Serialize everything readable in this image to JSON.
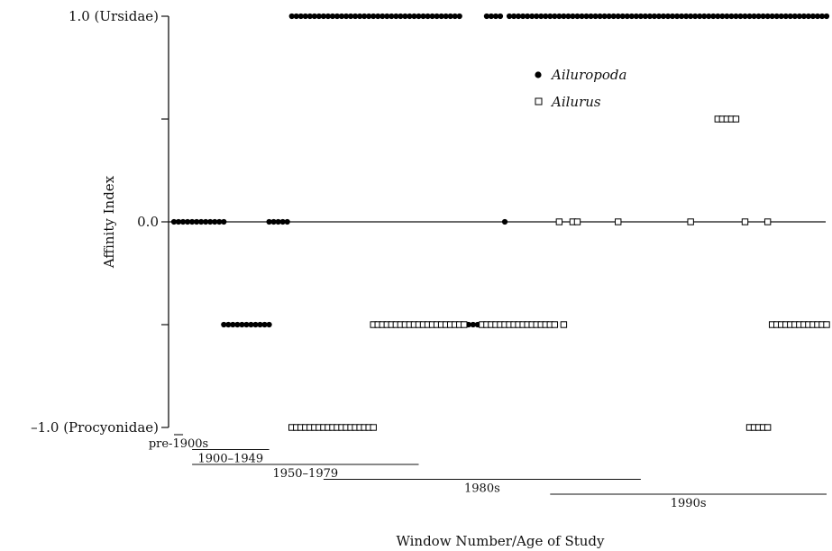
{
  "chart_data": {
    "type": "scatter",
    "title": "",
    "xlabel": "Window Number/Age of Study",
    "ylabel": "Affinity Index",
    "ylim": [
      -1.0,
      1.0
    ],
    "yticks": [
      {
        "value": 1.0,
        "label": "1.0 (Ursidae)"
      },
      {
        "value": 0.5,
        "label": ""
      },
      {
        "value": 0.0,
        "label": "0.0"
      },
      {
        "value": -0.5,
        "label": ""
      },
      {
        "value": -1.0,
        "label": "–1.0 (Procyonidae)"
      }
    ],
    "grid": false,
    "legend_position": "top-right",
    "windows_total": 145,
    "series": [
      {
        "name": "Ailuropoda",
        "marker": "filled-circle",
        "color": "#000000",
        "runs": [
          {
            "y": 0.0,
            "from": 1,
            "to": 12
          },
          {
            "y": -0.5,
            "from": 12,
            "to": 22
          },
          {
            "y": 0.0,
            "from": 22,
            "to": 26
          },
          {
            "y": 1.0,
            "from": 27,
            "to": 64
          },
          {
            "y": -0.5,
            "from": 65,
            "to": 69
          },
          {
            "y": 1.0,
            "from": 70,
            "to": 73
          },
          {
            "y": 0.0,
            "from": 74,
            "to": 74
          },
          {
            "y": 1.0,
            "from": 75,
            "to": 145
          }
        ]
      },
      {
        "name": "Ailurus",
        "marker": "open-square",
        "color": "#000000",
        "runs": [
          {
            "y": -1.0,
            "from": 27,
            "to": 45
          },
          {
            "y": -0.5,
            "from": 45,
            "to": 65
          },
          {
            "y": -0.5,
            "from": 69,
            "to": 85
          },
          {
            "y": -0.5,
            "from": 87,
            "to": 87
          },
          {
            "y": 0.0,
            "from": 86,
            "to": 86
          },
          {
            "y": 0.0,
            "from": 89,
            "to": 90
          },
          {
            "y": 0.0,
            "from": 99,
            "to": 99
          },
          {
            "y": 0.0,
            "from": 115,
            "to": 115
          },
          {
            "y": 0.5,
            "from": 121,
            "to": 125
          },
          {
            "y": 0.0,
            "from": 127,
            "to": 127
          },
          {
            "y": -1.0,
            "from": 128,
            "to": 132
          },
          {
            "y": 0.0,
            "from": 132,
            "to": 132
          },
          {
            "y": -0.5,
            "from": 133,
            "to": 145
          }
        ]
      }
    ],
    "age_ranges": [
      {
        "label": "pre-1900s",
        "from": 1,
        "to": 3
      },
      {
        "label": "1900–1949",
        "from": 5,
        "to": 22
      },
      {
        "label": "1950–1979",
        "from": 5,
        "to": 55
      },
      {
        "label": "1980s",
        "from": 34,
        "to": 104
      },
      {
        "label": "1990s",
        "from": 84,
        "to": 145
      }
    ]
  }
}
